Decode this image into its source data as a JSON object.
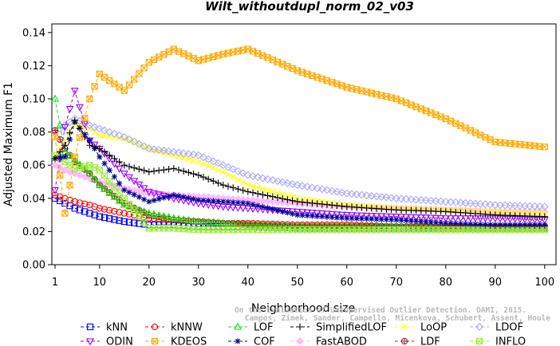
{
  "chart_data": {
    "type": "line",
    "title": "Wilt_withoutdupl_norm_02_v03",
    "xlabel": "Neighborhood size",
    "ylabel": "Adjusted Maximum F1",
    "xlim": [
      0,
      100
    ],
    "ylim": [
      0,
      0.145
    ],
    "x_ticks": [
      1,
      10,
      20,
      30,
      40,
      50,
      60,
      70,
      80,
      90,
      100
    ],
    "x_tick_labels": [
      "1",
      "10",
      "20",
      "30",
      "40",
      "50",
      "60",
      "70",
      "80",
      "90",
      "100"
    ],
    "y_ticks": [
      0,
      0.02,
      0.04,
      0.06,
      0.08,
      0.1,
      0.12,
      0.14
    ],
    "y_tick_labels": [
      "0.00",
      "0.02",
      "0.04",
      "0.06",
      "0.08",
      "0.10",
      "0.12",
      "0.14"
    ],
    "grid": false,
    "legend_position": "bottom",
    "watermark_lines": [
      "Campos, Zimek, Sander, Campello, Micenkova, Schubert, Assent, Houle",
      "On the Evaluation of Unsupervised Outlier Detection. DAMI, 2015."
    ],
    "x_knots": [
      1,
      3,
      5,
      8,
      10,
      15,
      20,
      25,
      30,
      35,
      40,
      50,
      60,
      70,
      80,
      90,
      100
    ],
    "series": [
      {
        "name": "kNN",
        "color": "#0000ff",
        "marker": "square",
        "values": [
          0.04,
          0.037,
          0.034,
          0.031,
          0.029,
          0.026,
          0.024,
          0.024,
          0.023,
          0.023,
          0.023,
          0.022,
          0.022,
          0.022,
          0.022,
          0.022,
          0.022
        ]
      },
      {
        "name": "kNNW",
        "color": "#ff0000",
        "marker": "circle",
        "values": [
          0.042,
          0.04,
          0.038,
          0.036,
          0.034,
          0.031,
          0.028,
          0.027,
          0.026,
          0.025,
          0.025,
          0.024,
          0.024,
          0.023,
          0.023,
          0.023,
          0.023
        ]
      },
      {
        "name": "LOF",
        "color": "#00ee00",
        "marker": "triangle-up",
        "values": [
          0.1,
          0.068,
          0.063,
          0.055,
          0.048,
          0.036,
          0.031,
          0.028,
          0.026,
          0.025,
          0.024,
          0.023,
          0.023,
          0.023,
          0.022,
          0.022,
          0.022
        ]
      },
      {
        "name": "SimplifiedLOF",
        "color": "#000000",
        "marker": "plus",
        "values": [
          0.064,
          0.072,
          0.087,
          0.072,
          0.07,
          0.06,
          0.056,
          0.058,
          0.054,
          0.048,
          0.044,
          0.038,
          0.035,
          0.033,
          0.032,
          0.03,
          0.029
        ]
      },
      {
        "name": "LoOP",
        "color": "#ffff00",
        "marker": "x",
        "values": [
          0.065,
          0.075,
          0.085,
          0.082,
          0.078,
          0.076,
          0.07,
          0.066,
          0.062,
          0.056,
          0.048,
          0.04,
          0.036,
          0.034,
          0.033,
          0.032,
          0.031
        ]
      },
      {
        "name": "LDOF",
        "color": "#aaaaff",
        "marker": "diamond",
        "values": [
          0.08,
          0.084,
          0.088,
          0.084,
          0.082,
          0.077,
          0.07,
          0.068,
          0.066,
          0.06,
          0.054,
          0.048,
          0.043,
          0.04,
          0.038,
          0.036,
          0.035
        ]
      },
      {
        "name": "ODIN",
        "color": "#9900ff",
        "marker": "triangle-down",
        "values": [
          0.045,
          0.083,
          0.105,
          0.075,
          0.07,
          0.055,
          0.044,
          0.04,
          0.037,
          0.035,
          0.034,
          0.032,
          0.03,
          0.029,
          0.028,
          0.028,
          0.027
        ]
      },
      {
        "name": "KDEOS",
        "color": "#ffaa00",
        "marker": "square-x",
        "values": [
          0.077,
          0.031,
          0.065,
          0.1,
          0.115,
          0.105,
          0.122,
          0.13,
          0.123,
          0.127,
          0.13,
          0.117,
          0.107,
          0.1,
          0.088,
          0.074,
          0.071
        ]
      },
      {
        "name": "COF",
        "color": "#000099",
        "marker": "asterisk",
        "values": [
          0.064,
          0.065,
          0.086,
          0.075,
          0.065,
          0.045,
          0.038,
          0.042,
          0.039,
          0.038,
          0.037,
          0.03,
          0.028,
          0.027,
          0.025,
          0.024,
          0.024
        ]
      },
      {
        "name": "FastABOD",
        "color": "#ffbbff",
        "marker": "diamond-filled",
        "values": [
          0.06,
          0.057,
          0.055,
          0.052,
          0.05,
          0.046,
          0.043,
          0.042,
          0.041,
          0.04,
          0.039,
          0.037,
          0.035,
          0.034,
          0.033,
          0.032,
          0.032
        ]
      },
      {
        "name": "LDF",
        "color": "#aa2222",
        "marker": "circle-plus",
        "values": [
          0.081,
          0.07,
          0.062,
          0.055,
          0.048,
          0.037,
          0.03,
          0.027,
          0.026,
          0.025,
          0.024,
          0.023,
          0.023,
          0.023,
          0.022,
          0.022,
          0.022
        ]
      },
      {
        "name": "INFLO",
        "color": "#99ee33",
        "marker": "square-x",
        "values": [
          0.066,
          0.062,
          0.058,
          0.06,
          0.057,
          0.04,
          0.022,
          0.022,
          0.021,
          0.021,
          0.021,
          0.021,
          0.021,
          0.021,
          0.021,
          0.021,
          0.021
        ]
      }
    ]
  }
}
